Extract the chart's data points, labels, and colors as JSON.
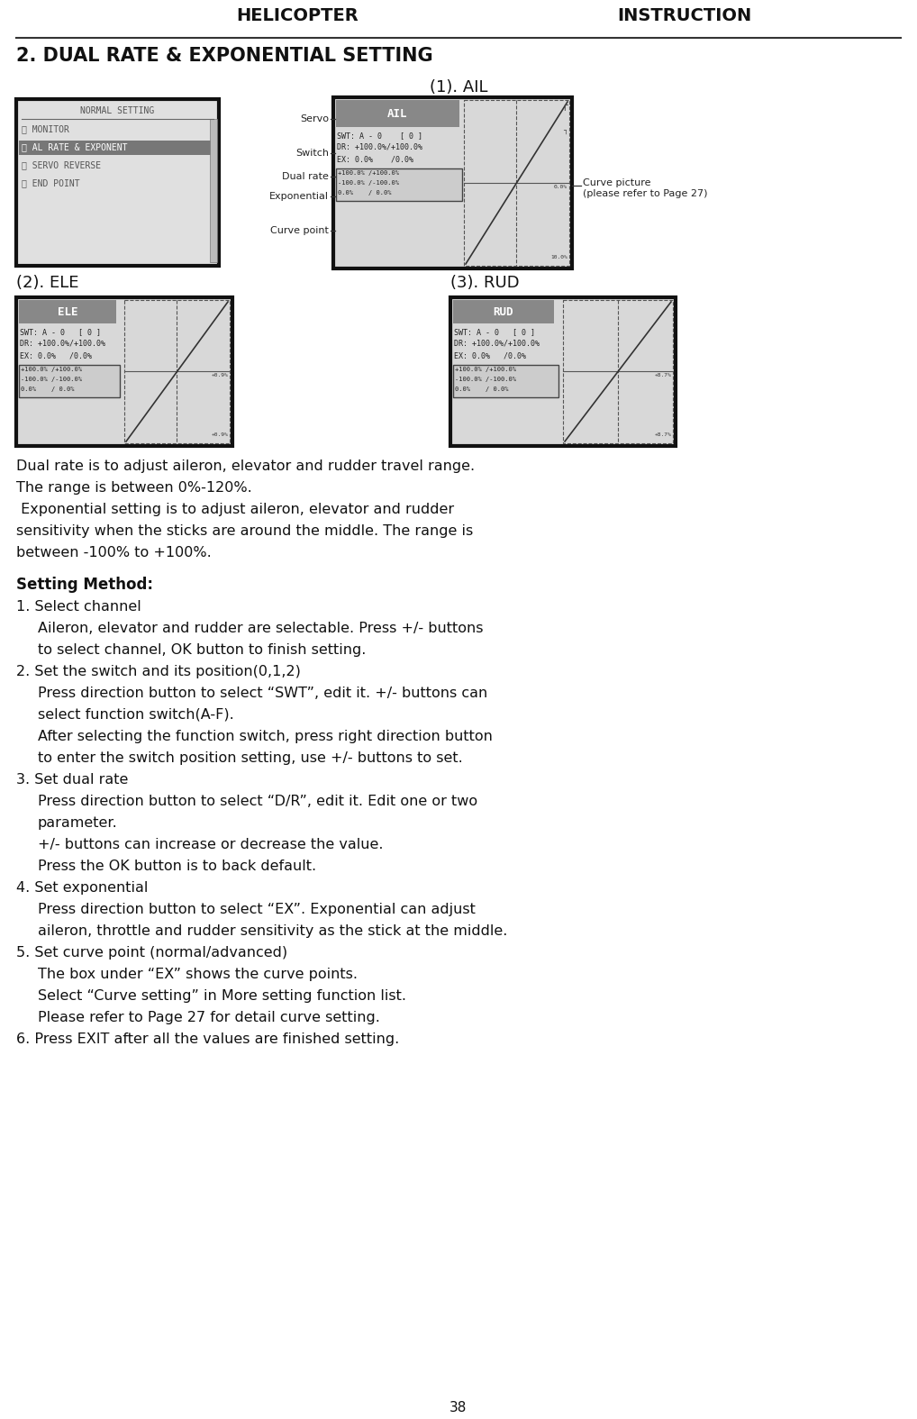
{
  "page_bg": "#ffffff",
  "header_left": "HELICOPTER",
  "header_right": "INSTRUCTION",
  "title": "2. DUAL RATE & EXPONENTIAL SETTING",
  "subtitle1": "(1). AIL",
  "subtitle2": "(2). ELE",
  "subtitle3": "(3). RUD",
  "labels_ail": [
    "Servo",
    "Switch",
    "Dual rate",
    "Exponential",
    "Curve point"
  ],
  "curve_note": "Curve picture\n(please refer to Page 27)",
  "para1": "Dual rate is to adjust aileron, elevator and rudder travel range.\nThe range is between 0%-120%.",
  "para2": " Exponential setting is to adjust aileron, elevator and rudder\nsensitivity when the sticks are around the middle. The range is\nbetween -100% to +100%.",
  "setting_method_title": "Setting Method:",
  "steps": [
    {
      "num": "1.",
      "title": "Select channel",
      "body": [
        "Aileron, elevator and rudder are selectable. Press +/- buttons",
        "   to select channel, OK button to finish setting."
      ]
    },
    {
      "num": "2.",
      "title": "Set the switch and its position(0,1,2)",
      "body": [
        "Press direction button to select “SWT”, edit it. +/- buttons can",
        "   select function switch(A-F).",
        "   After selecting the function switch, press right direction button",
        "   to enter the switch position setting, use +/- buttons to set."
      ]
    },
    {
      "num": "3.",
      "title": "Set dual rate",
      "body": [
        "Press direction button to select “D/R”, edit it. Edit one or two",
        "   parameter.",
        "   +/- buttons can increase or decrease the value.",
        "   Press the OK button is to back default."
      ]
    },
    {
      "num": "4.",
      "title": "Set exponential",
      "body": [
        "Press direction button to select “EX”. Exponential can adjust",
        "   aileron, throttle and rudder sensitivity as the stick at the middle."
      ]
    },
    {
      "num": "5.",
      "title": "Set curve point (normal/advanced)",
      "body": [
        "The box under “EX” shows the curve points.",
        "   Select “Curve setting” in More setting function list.",
        "   Please refer to Page 27 for detail curve setting."
      ]
    },
    {
      "num": "6.",
      "title": "Press EXIT after all the values are finished setting.",
      "body": []
    }
  ],
  "footer": "38"
}
